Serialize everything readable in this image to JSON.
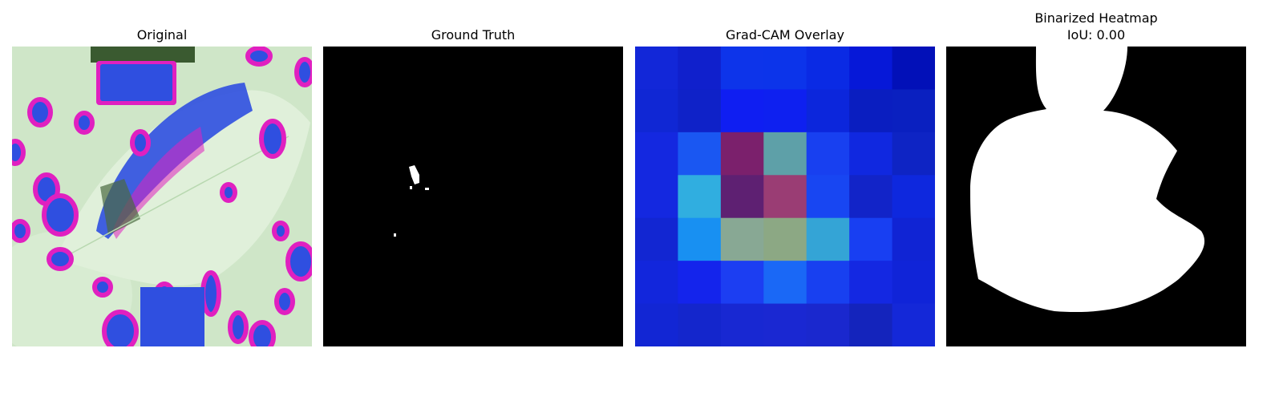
{
  "panels": [
    {
      "title": "Original"
    },
    {
      "title": "Ground Truth"
    },
    {
      "title": "Grad-CAM Overlay"
    },
    {
      "title_line1": "Binarized Heatmap",
      "title_line2": "IoU: 0.00"
    }
  ],
  "colors": {
    "background": "#ffffff",
    "leaf_light": "#d6ecd0",
    "spot_blue": "#2f4fe0",
    "spot_magenta": "#e020c0",
    "mask_white": "#ffffff",
    "mask_black": "#000000"
  },
  "gradcam_grid": [
    [
      "#1227d8",
      "#1020cc",
      "#0d34ea",
      "#0c34ea",
      "#0a2ae4",
      "#0618d8",
      "#0210b8"
    ],
    [
      "#1027d4",
      "#0f22c8",
      "#0f1ef2",
      "#0e20f0",
      "#0c26dc",
      "#0a1ec0",
      "#0a20c0"
    ],
    [
      "#1428e0",
      "#1a57f2",
      "#7b206c",
      "#5ea0a8",
      "#1840f0",
      "#1028e0",
      "#0e24c4"
    ],
    [
      "#1428e0",
      "#30aee0",
      "#5e2072",
      "#9a3d74",
      "#1846f2",
      "#1224c8",
      "#0e28de"
    ],
    [
      "#1226d2",
      "#1890f2",
      "#88a894",
      "#8ca884",
      "#34a4d6",
      "#183ff2",
      "#1024d4"
    ],
    [
      "#1226dc",
      "#1424ec",
      "#1c3ef2",
      "#1a68f6",
      "#1840f0",
      "#1428e2",
      "#1024d8"
    ],
    [
      "#1226d4",
      "#1426cc",
      "#1828d2",
      "#1a28d2",
      "#1a28ce",
      "#1424bc",
      "#1428d8"
    ]
  ]
}
